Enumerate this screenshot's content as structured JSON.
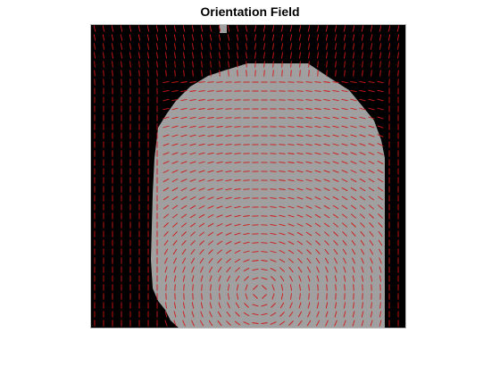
{
  "title": "Orientation Field",
  "colors": {
    "background": "#000000",
    "foreground": "#a0a0a0",
    "vector": "#d01818"
  }
}
